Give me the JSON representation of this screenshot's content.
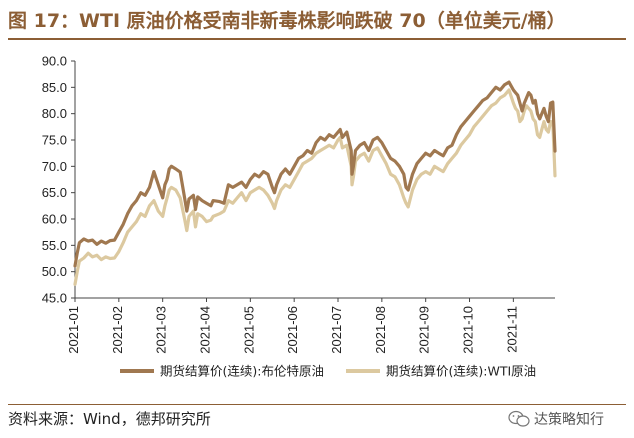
{
  "figure": {
    "title": "图 17：WTI 原油价格受南非新毒株影响跌破 70（单位美元/桶）",
    "source": "资料来源：Wind，德邦研究所",
    "watermark": "达策略知行"
  },
  "colors": {
    "accent": "#8C5E35",
    "brent": "#A07850",
    "wti": "#DCC9A0",
    "axis": "#444444"
  },
  "chart_data": {
    "type": "line",
    "title": "",
    "xlabel": "",
    "ylabel": "",
    "ylim": [
      45,
      90
    ],
    "y_ticks": [
      "90.0",
      "85.0",
      "80.0",
      "75.0",
      "70.0",
      "65.0",
      "60.0",
      "55.0",
      "50.0",
      "45.0"
    ],
    "x_ticks": [
      "2021-01",
      "2021-02",
      "2021-03",
      "2021-04",
      "2021-05",
      "2021-06",
      "2021-07",
      "2021-08",
      "2021-09",
      "2021-10",
      "2021-11"
    ],
    "x_range": [
      1.0,
      11.95
    ],
    "grid": false,
    "legend_position": "bottom",
    "series": [
      {
        "name": "期货结算价(连续):布伦特原油",
        "points": [
          [
            1.0,
            51.1
          ],
          [
            1.05,
            53.5
          ],
          [
            1.1,
            55.5
          ],
          [
            1.2,
            56.2
          ],
          [
            1.3,
            55.8
          ],
          [
            1.4,
            56.0
          ],
          [
            1.5,
            55.2
          ],
          [
            1.6,
            55.8
          ],
          [
            1.7,
            55.4
          ],
          [
            1.8,
            55.9
          ],
          [
            1.9,
            56.0
          ],
          [
            2.0,
            57.5
          ],
          [
            2.1,
            59.0
          ],
          [
            2.2,
            61.0
          ],
          [
            2.3,
            62.5
          ],
          [
            2.4,
            63.5
          ],
          [
            2.5,
            65.0
          ],
          [
            2.6,
            64.5
          ],
          [
            2.7,
            66.0
          ],
          [
            2.8,
            69.0
          ],
          [
            2.9,
            66.5
          ],
          [
            3.0,
            64.0
          ],
          [
            3.05,
            66.5
          ],
          [
            3.1,
            67.5
          ],
          [
            3.15,
            69.5
          ],
          [
            3.2,
            70.0
          ],
          [
            3.3,
            69.5
          ],
          [
            3.4,
            68.9
          ],
          [
            3.5,
            64.0
          ],
          [
            3.55,
            61.5
          ],
          [
            3.6,
            63.8
          ],
          [
            3.7,
            64.5
          ],
          [
            3.75,
            61.8
          ],
          [
            3.8,
            64.2
          ],
          [
            3.9,
            63.5
          ],
          [
            4.0,
            63.0
          ],
          [
            4.1,
            62.5
          ],
          [
            4.15,
            63.5
          ],
          [
            4.3,
            63.3
          ],
          [
            4.4,
            63.0
          ],
          [
            4.5,
            66.5
          ],
          [
            4.6,
            66.0
          ],
          [
            4.7,
            66.5
          ],
          [
            4.8,
            67.0
          ],
          [
            4.9,
            66.0
          ],
          [
            5.0,
            67.5
          ],
          [
            5.1,
            68.5
          ],
          [
            5.2,
            68.0
          ],
          [
            5.3,
            69.0
          ],
          [
            5.4,
            68.5
          ],
          [
            5.5,
            66.0
          ],
          [
            5.55,
            65.0
          ],
          [
            5.6,
            66.5
          ],
          [
            5.7,
            68.5
          ],
          [
            5.8,
            69.5
          ],
          [
            5.9,
            68.5
          ],
          [
            6.0,
            70.0
          ],
          [
            6.1,
            71.5
          ],
          [
            6.2,
            72.0
          ],
          [
            6.3,
            73.0
          ],
          [
            6.4,
            72.5
          ],
          [
            6.5,
            74.5
          ],
          [
            6.6,
            75.5
          ],
          [
            6.7,
            75.0
          ],
          [
            6.8,
            76.0
          ],
          [
            6.9,
            75.5
          ],
          [
            7.0,
            76.5
          ],
          [
            7.05,
            77.0
          ],
          [
            7.1,
            75.5
          ],
          [
            7.2,
            76.5
          ],
          [
            7.3,
            73.0
          ],
          [
            7.32,
            68.5
          ],
          [
            7.35,
            70.0
          ],
          [
            7.4,
            73.0
          ],
          [
            7.5,
            74.0
          ],
          [
            7.6,
            74.5
          ],
          [
            7.7,
            73.0
          ],
          [
            7.8,
            75.0
          ],
          [
            7.9,
            75.5
          ],
          [
            8.0,
            74.5
          ],
          [
            8.1,
            73.0
          ],
          [
            8.2,
            71.5
          ],
          [
            8.3,
            71.0
          ],
          [
            8.4,
            70.0
          ],
          [
            8.5,
            68.5
          ],
          [
            8.55,
            66.0
          ],
          [
            8.6,
            65.5
          ],
          [
            8.7,
            68.5
          ],
          [
            8.8,
            70.5
          ],
          [
            8.9,
            71.5
          ],
          [
            9.0,
            72.5
          ],
          [
            9.1,
            72.0
          ],
          [
            9.2,
            73.0
          ],
          [
            9.3,
            72.5
          ],
          [
            9.4,
            72.0
          ],
          [
            9.5,
            73.5
          ],
          [
            9.6,
            74.0
          ],
          [
            9.7,
            76.0
          ],
          [
            9.8,
            77.5
          ],
          [
            9.9,
            78.5
          ],
          [
            10.0,
            79.5
          ],
          [
            10.1,
            80.5
          ],
          [
            10.2,
            81.5
          ],
          [
            10.3,
            82.5
          ],
          [
            10.4,
            83.0
          ],
          [
            10.5,
            84.0
          ],
          [
            10.6,
            85.0
          ],
          [
            10.7,
            84.5
          ],
          [
            10.8,
            85.5
          ],
          [
            10.9,
            86.0
          ],
          [
            11.0,
            84.5
          ],
          [
            11.05,
            84.0
          ],
          [
            11.1,
            83.5
          ],
          [
            11.15,
            82.0
          ],
          [
            11.2,
            80.5
          ],
          [
            11.25,
            82.0
          ],
          [
            11.3,
            83.0
          ],
          [
            11.35,
            84.0
          ],
          [
            11.4,
            83.5
          ],
          [
            11.45,
            82.0
          ],
          [
            11.5,
            82.5
          ],
          [
            11.55,
            80.0
          ],
          [
            11.6,
            79.0
          ],
          [
            11.65,
            80.0
          ],
          [
            11.7,
            81.0
          ],
          [
            11.75,
            79.5
          ],
          [
            11.8,
            78.5
          ],
          [
            11.85,
            82.0
          ],
          [
            11.9,
            82.2
          ],
          [
            11.95,
            72.9
          ]
        ]
      },
      {
        "name": "期货结算价(连续):WTI原油",
        "points": [
          [
            1.0,
            47.6
          ],
          [
            1.05,
            50.0
          ],
          [
            1.1,
            52.0
          ],
          [
            1.2,
            52.6
          ],
          [
            1.3,
            53.5
          ],
          [
            1.4,
            52.8
          ],
          [
            1.5,
            53.1
          ],
          [
            1.6,
            52.3
          ],
          [
            1.7,
            52.8
          ],
          [
            1.8,
            52.5
          ],
          [
            1.9,
            52.6
          ],
          [
            2.0,
            53.8
          ],
          [
            2.1,
            55.5
          ],
          [
            2.2,
            57.5
          ],
          [
            2.3,
            58.5
          ],
          [
            2.4,
            59.5
          ],
          [
            2.5,
            61.0
          ],
          [
            2.6,
            60.5
          ],
          [
            2.7,
            62.5
          ],
          [
            2.8,
            63.5
          ],
          [
            2.9,
            61.5
          ],
          [
            3.0,
            60.5
          ],
          [
            3.05,
            62.5
          ],
          [
            3.1,
            64.0
          ],
          [
            3.15,
            65.5
          ],
          [
            3.2,
            66.0
          ],
          [
            3.3,
            65.5
          ],
          [
            3.4,
            64.0
          ],
          [
            3.5,
            60.0
          ],
          [
            3.55,
            57.8
          ],
          [
            3.6,
            60.5
          ],
          [
            3.7,
            61.5
          ],
          [
            3.75,
            58.5
          ],
          [
            3.8,
            61.0
          ],
          [
            3.9,
            60.5
          ],
          [
            4.0,
            59.5
          ],
          [
            4.1,
            59.8
          ],
          [
            4.15,
            60.5
          ],
          [
            4.3,
            61.0
          ],
          [
            4.4,
            61.5
          ],
          [
            4.5,
            63.5
          ],
          [
            4.6,
            63.0
          ],
          [
            4.7,
            64.0
          ],
          [
            4.8,
            65.0
          ],
          [
            4.9,
            63.5
          ],
          [
            5.0,
            65.0
          ],
          [
            5.1,
            65.5
          ],
          [
            5.2,
            66.0
          ],
          [
            5.3,
            65.5
          ],
          [
            5.4,
            64.5
          ],
          [
            5.5,
            63.0
          ],
          [
            5.55,
            62.0
          ],
          [
            5.6,
            63.5
          ],
          [
            5.7,
            65.5
          ],
          [
            5.8,
            66.5
          ],
          [
            5.9,
            66.0
          ],
          [
            6.0,
            67.5
          ],
          [
            6.1,
            69.0
          ],
          [
            6.2,
            70.5
          ],
          [
            6.3,
            71.0
          ],
          [
            6.4,
            71.5
          ],
          [
            6.5,
            72.5
          ],
          [
            6.6,
            73.0
          ],
          [
            6.7,
            73.5
          ],
          [
            6.8,
            74.0
          ],
          [
            6.9,
            73.5
          ],
          [
            7.0,
            75.0
          ],
          [
            7.05,
            75.5
          ],
          [
            7.1,
            73.5
          ],
          [
            7.2,
            74.0
          ],
          [
            7.3,
            70.0
          ],
          [
            7.32,
            66.5
          ],
          [
            7.35,
            68.0
          ],
          [
            7.4,
            71.0
          ],
          [
            7.5,
            72.0
          ],
          [
            7.6,
            72.5
          ],
          [
            7.7,
            71.0
          ],
          [
            7.8,
            73.0
          ],
          [
            7.9,
            73.5
          ],
          [
            8.0,
            72.0
          ],
          [
            8.1,
            70.5
          ],
          [
            8.2,
            68.5
          ],
          [
            8.3,
            68.0
          ],
          [
            8.4,
            66.5
          ],
          [
            8.5,
            64.0
          ],
          [
            8.55,
            63.0
          ],
          [
            8.6,
            62.3
          ],
          [
            8.7,
            65.5
          ],
          [
            8.8,
            67.5
          ],
          [
            8.9,
            68.5
          ],
          [
            9.0,
            69.0
          ],
          [
            9.1,
            68.5
          ],
          [
            9.2,
            70.0
          ],
          [
            9.3,
            69.5
          ],
          [
            9.4,
            69.0
          ],
          [
            9.5,
            70.5
          ],
          [
            9.6,
            71.5
          ],
          [
            9.7,
            72.5
          ],
          [
            9.8,
            74.0
          ],
          [
            9.9,
            75.0
          ],
          [
            10.0,
            76.0
          ],
          [
            10.1,
            77.5
          ],
          [
            10.2,
            78.5
          ],
          [
            10.3,
            79.5
          ],
          [
            10.4,
            80.5
          ],
          [
            10.5,
            81.5
          ],
          [
            10.6,
            82.0
          ],
          [
            10.7,
            83.0
          ],
          [
            10.8,
            83.5
          ],
          [
            10.9,
            84.5
          ],
          [
            11.0,
            82.0
          ],
          [
            11.05,
            81.0
          ],
          [
            11.1,
            80.5
          ],
          [
            11.15,
            78.5
          ],
          [
            11.2,
            79.0
          ],
          [
            11.25,
            80.5
          ],
          [
            11.3,
            81.5
          ],
          [
            11.35,
            81.0
          ],
          [
            11.4,
            80.5
          ],
          [
            11.45,
            79.0
          ],
          [
            11.5,
            78.5
          ],
          [
            11.55,
            76.0
          ],
          [
            11.6,
            75.5
          ],
          [
            11.65,
            77.0
          ],
          [
            11.7,
            78.5
          ],
          [
            11.75,
            77.0
          ],
          [
            11.8,
            76.5
          ],
          [
            11.85,
            78.5
          ],
          [
            11.9,
            78.4
          ],
          [
            11.95,
            68.2
          ]
        ]
      }
    ]
  }
}
